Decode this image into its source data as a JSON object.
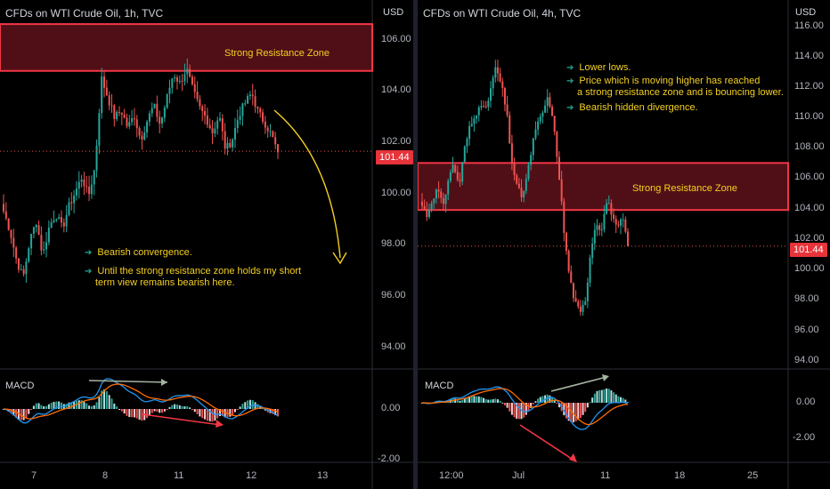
{
  "chart_data": [
    {
      "type": "candlestick",
      "title": "CFDs on WTI Crude Oil, 1h, TVC",
      "currency": "USD",
      "y_ticks": [
        "106.00",
        "104.00",
        "102.00",
        "100.00",
        "98.00",
        "96.00",
        "94.00"
      ],
      "ylim": [
        93.0,
        107.0
      ],
      "x_ticks": [
        "7",
        "8",
        "11",
        "12",
        "13"
      ],
      "last_price": "101.44",
      "last_price_value": 101.44,
      "resistance_zone": {
        "label": "Strong Resistance Zone",
        "low": 104.7,
        "high": 106.6
      },
      "notes": [
        "Bearish convergence.",
        "Until the strong resistance zone holds my short",
        "term view remains bearish here."
      ],
      "indicator": {
        "name": "MACD",
        "y_ticks": [
          "0.00",
          "-2.00"
        ]
      },
      "close_path": [
        99.0,
        98.2,
        97.0,
        96.3,
        97.8,
        98.6,
        97.2,
        98.4,
        98.9,
        98.3,
        99.2,
        99.8,
        100.4,
        99.6,
        100.8,
        104.4,
        103.6,
        102.8,
        103.1,
        102.4,
        102.9,
        101.9,
        102.7,
        103.3,
        102.5,
        103.6,
        104.6,
        104.2,
        104.8,
        103.9,
        103.2,
        102.8,
        102.2,
        102.9,
        101.5,
        101.9,
        102.9,
        103.4,
        103.8,
        103.0,
        102.6,
        102.1,
        101.4
      ],
      "series_colors": {
        "up": "#26a69a",
        "down": "#ef5350",
        "macd": "#2196f3",
        "signal": "#ff6d00"
      }
    },
    {
      "type": "candlestick",
      "title": "CFDs on WTI Crude Oil, 4h, TVC",
      "currency": "USD",
      "y_ticks": [
        "116.00",
        "114.00",
        "112.00",
        "110.00",
        "108.00",
        "106.00",
        "104.00",
        "102.00",
        "100.00",
        "98.00",
        "96.00",
        "94.00"
      ],
      "ylim": [
        93.5,
        116.5
      ],
      "x_ticks": [
        "12:00",
        "Jul",
        "11",
        "18",
        "25"
      ],
      "last_price": "101.44",
      "last_price_value": 101.44,
      "resistance_zone": {
        "label": "Strong Resistance Zone",
        "low": 103.9,
        "high": 107.1
      },
      "notes": [
        "Lower lows.",
        "Price which is moving higher has reached",
        "a strong resistance zone and is bouncing lower.",
        "Bearish hidden divergence."
      ],
      "indicator": {
        "name": "MACD",
        "y_ticks": [
          "0.00",
          "-2.00"
        ]
      },
      "close_path": [
        104.2,
        103.5,
        104.8,
        105.3,
        104.0,
        106.2,
        107.0,
        105.5,
        108.0,
        109.5,
        110.2,
        111.4,
        110.5,
        112.2,
        113.6,
        112.4,
        110.6,
        107.2,
        105.4,
        104.8,
        106.4,
        108.6,
        109.8,
        110.7,
        111.6,
        109.4,
        106.2,
        102.0,
        99.2,
        97.6,
        96.8,
        97.9,
        101.3,
        103.1,
        102.6,
        104.5,
        103.7,
        102.4,
        103.4,
        101.44
      ],
      "series_colors": {
        "up": "#26a69a",
        "down": "#ef5350",
        "macd": "#2196f3",
        "signal": "#ff6d00"
      }
    }
  ]
}
